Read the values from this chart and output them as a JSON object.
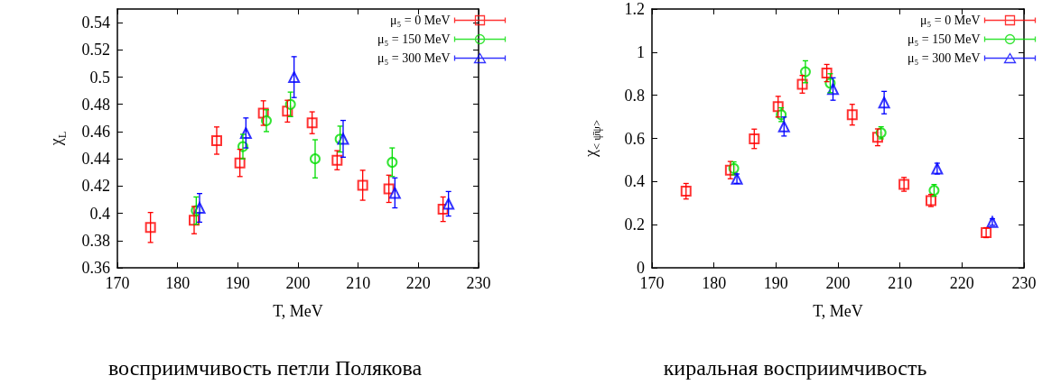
{
  "chart_data": [
    {
      "type": "scatter",
      "title": "восприимчивость петли Полякова",
      "xlabel": "T, MeV",
      "ylabel": "χ$_{L}$",
      "xlim": [
        170,
        230
      ],
      "xticks": [
        170,
        180,
        190,
        200,
        210,
        220,
        230
      ],
      "ylim": [
        0.36,
        0.55
      ],
      "yticks": [
        0.36,
        0.38,
        0.4,
        0.42,
        0.44,
        0.46,
        0.48,
        0.5,
        0.52,
        0.54
      ],
      "grid": false,
      "legend": "top right",
      "series": [
        {
          "name": "μ₅ = 0 MeV",
          "color": "#ff0000",
          "marker": "square",
          "x": [
            175.5,
            182.75,
            186.5,
            190.35,
            194.25,
            198.25,
            202.35,
            206.5,
            210.75,
            215.1,
            224.1
          ],
          "values": [
            0.3896,
            0.395,
            0.4534,
            0.437,
            0.4736,
            0.475,
            0.4665,
            0.439,
            0.4206,
            0.418,
            0.403
          ],
          "errors": [
            0.011,
            0.01,
            0.01,
            0.01,
            0.009,
            0.008,
            0.008,
            0.007,
            0.011,
            0.01,
            0.009
          ]
        },
        {
          "name": "μ₅ = 150 MeV",
          "color": "#00dd00",
          "marker": "circle",
          "x": [
            183.1,
            190.85,
            194.75,
            198.75,
            202.85,
            207.0,
            215.65
          ],
          "values": [
            0.402,
            0.449,
            0.468,
            0.48,
            0.44,
            0.4545,
            0.4375
          ],
          "errors": [
            0.01,
            0.009,
            0.008,
            0.009,
            0.014,
            0.0095,
            0.0105
          ]
        },
        {
          "name": "μ₅ = 300 MeV",
          "color": "#0000ff",
          "marker": "triangle",
          "x": [
            183.65,
            191.35,
            199.35,
            207.5,
            216.1,
            225.0
          ],
          "values": [
            0.404,
            0.459,
            0.5,
            0.4547,
            0.415,
            0.407
          ],
          "errors": [
            0.0105,
            0.011,
            0.015,
            0.0135,
            0.011,
            0.009
          ]
        }
      ]
    },
    {
      "type": "scatter",
      "title": "киральная восприимчивость",
      "xlabel": "T, MeV",
      "ylabel": "χ$_{< ψ̄ψ>}$",
      "xlim": [
        170,
        230
      ],
      "xticks": [
        170,
        180,
        190,
        200,
        210,
        220,
        230
      ],
      "ylim": [
        0,
        1.2
      ],
      "yticks": [
        0,
        0.2,
        0.4,
        0.6,
        0.8,
        1,
        1.2
      ],
      "grid": false,
      "legend": "top right",
      "series": [
        {
          "name": "μ₅ = 0 MeV",
          "color": "#ff0000",
          "marker": "square",
          "x": [
            175.5,
            182.65,
            186.5,
            190.35,
            194.25,
            198.2,
            202.3,
            206.4,
            210.65,
            215.0,
            223.9
          ],
          "values": [
            0.355,
            0.453,
            0.598,
            0.747,
            0.851,
            0.903,
            0.71,
            0.605,
            0.387,
            0.312,
            0.163
          ],
          "errors": [
            0.036,
            0.04,
            0.045,
            0.048,
            0.041,
            0.04,
            0.048,
            0.039,
            0.032,
            0.028,
            0.023
          ]
        },
        {
          "name": "μ₅ = 150 MeV",
          "color": "#00dd00",
          "marker": "circle",
          "x": [
            183.2,
            190.85,
            194.75,
            198.75,
            206.95,
            215.5
          ],
          "values": [
            0.461,
            0.71,
            0.909,
            0.856,
            0.626,
            0.359
          ],
          "errors": [
            0.03,
            0.032,
            0.051,
            0.044,
            0.028,
            0.027
          ]
        },
        {
          "name": "μ₅ = 300 MeV",
          "color": "#0000ff",
          "marker": "triangle",
          "x": [
            183.7,
            191.3,
            199.2,
            207.45,
            216.0,
            224.9
          ],
          "values": [
            0.413,
            0.655,
            0.829,
            0.766,
            0.46,
            0.212
          ],
          "errors": [
            0.022,
            0.044,
            0.052,
            0.052,
            0.025,
            0.015
          ]
        }
      ]
    }
  ]
}
